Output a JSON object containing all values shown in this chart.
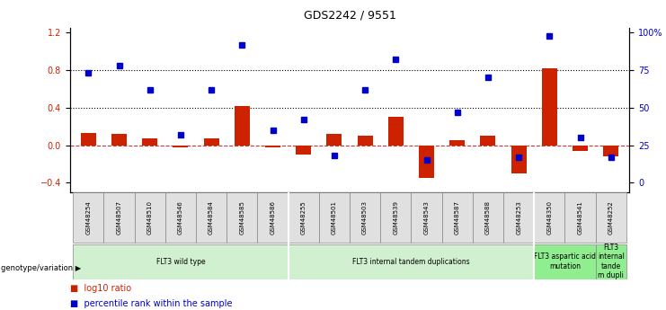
{
  "title": "GDS2242 / 9551",
  "samples": [
    "GSM48254",
    "GSM48507",
    "GSM48510",
    "GSM48546",
    "GSM48584",
    "GSM48585",
    "GSM48586",
    "GSM48255",
    "GSM48501",
    "GSM48503",
    "GSM48539",
    "GSM48543",
    "GSM48587",
    "GSM48588",
    "GSM48253",
    "GSM48350",
    "GSM48541",
    "GSM48252"
  ],
  "log10_ratio": [
    0.13,
    0.12,
    0.07,
    -0.02,
    0.07,
    0.42,
    -0.02,
    -0.1,
    0.12,
    0.1,
    0.3,
    -0.35,
    0.05,
    0.1,
    -0.3,
    0.82,
    -0.06,
    -0.12
  ],
  "percentile_rank": [
    73,
    78,
    62,
    32,
    62,
    92,
    35,
    42,
    18,
    62,
    82,
    15,
    47,
    70,
    17,
    98,
    30,
    17
  ],
  "groups": [
    {
      "label": "FLT3 wild type",
      "start": 0,
      "end": 7,
      "color": "#d0f0d0"
    },
    {
      "label": "FLT3 internal tandem duplications",
      "start": 7,
      "end": 15,
      "color": "#d0f0d0"
    },
    {
      "label": "FLT3 aspartic acid\nmutation",
      "start": 15,
      "end": 17,
      "color": "#90ee90"
    },
    {
      "label": "FLT3\ninternal\ntande\nm dupli",
      "start": 17,
      "end": 18,
      "color": "#90ee90"
    }
  ],
  "ylim": [
    -0.5,
    1.25
  ],
  "y_left_ticks": [
    -0.4,
    0.0,
    0.4,
    0.8,
    1.2
  ],
  "y_right_ticks": [
    0,
    25,
    50,
    75,
    100
  ],
  "hlines": [
    0.4,
    0.8
  ],
  "bar_color": "#cc2200",
  "dot_color": "#0000cc",
  "zero_line_color": "#cc3333",
  "bg_color": "#ffffff",
  "group_separators": [
    6.5,
    14.5
  ]
}
